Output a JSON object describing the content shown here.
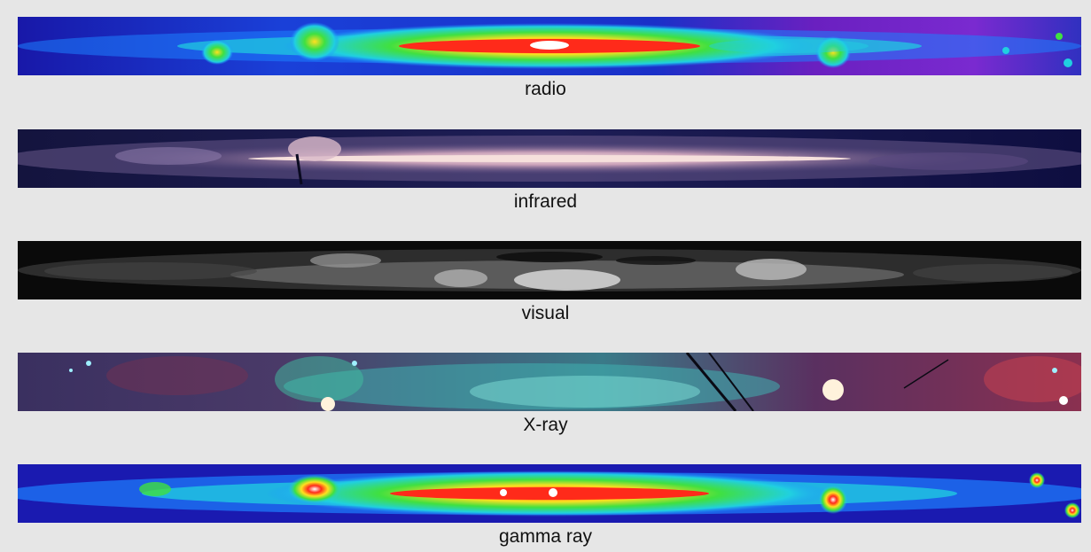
{
  "panels": [
    {
      "id": "radio",
      "label": "radio",
      "palette": [
        "#1a1aa0",
        "#1e7bff",
        "#1fd7e0",
        "#3fdc3a",
        "#ffe21a",
        "#e62020",
        "#ffffff"
      ]
    },
    {
      "id": "infrared",
      "label": "infrared",
      "palette": [
        "#0a0a3a",
        "#2a2a6a",
        "#6a5a8a",
        "#c8a8b8",
        "#f4dcd8"
      ]
    },
    {
      "id": "visual",
      "label": "visual",
      "palette": [
        "#050505",
        "#3a3a3a",
        "#8a8a8a",
        "#dcdcdc"
      ]
    },
    {
      "id": "xray",
      "label": "X-ray",
      "palette": [
        "#3a3060",
        "#7a3050",
        "#3aa0a0",
        "#7de0d8",
        "#ffffff"
      ]
    },
    {
      "id": "gamma",
      "label": "gamma ray",
      "palette": [
        "#1a20b0",
        "#1e8bff",
        "#1fd7e0",
        "#3fdc3a",
        "#ffe21a",
        "#e62020",
        "#ffffff"
      ]
    }
  ]
}
